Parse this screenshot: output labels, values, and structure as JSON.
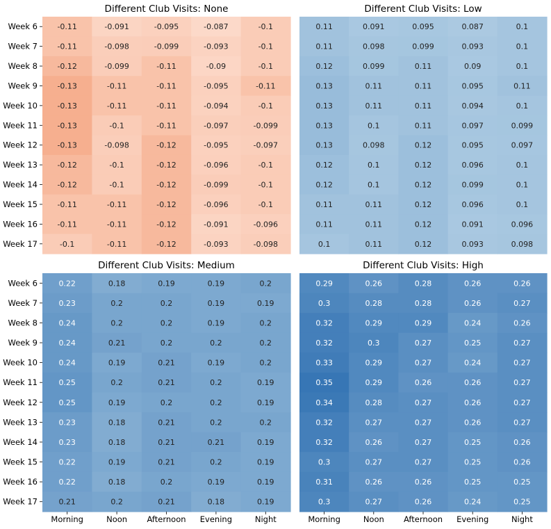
{
  "chart_data": [
    {
      "type": "heatmap",
      "title": "Different Club Visits: None",
      "xlabel": "",
      "ylabel": "",
      "categories": [
        "Morning",
        "Noon",
        "Afternoon",
        "Evening",
        "Night"
      ],
      "rows": [
        "Week 6",
        "Week 7",
        "Week 8",
        "Week 9",
        "Week 10",
        "Week 11",
        "Week 12",
        "Week 13",
        "Week 14",
        "Week 15",
        "Week 16",
        "Week 17"
      ],
      "values": [
        [
          "-0.11",
          "-0.091",
          "-0.095",
          "-0.087",
          "-0.1"
        ],
        [
          "-0.11",
          "-0.098",
          "-0.099",
          "-0.093",
          "-0.1"
        ],
        [
          "-0.12",
          "-0.099",
          "-0.11",
          "-0.09",
          "-0.1"
        ],
        [
          "-0.13",
          "-0.11",
          "-0.11",
          "-0.095",
          "-0.11"
        ],
        [
          "-0.13",
          "-0.11",
          "-0.11",
          "-0.094",
          "-0.1"
        ],
        [
          "-0.13",
          "-0.1",
          "-0.11",
          "-0.097",
          "-0.099"
        ],
        [
          "-0.13",
          "-0.098",
          "-0.12",
          "-0.095",
          "-0.097"
        ],
        [
          "-0.12",
          "-0.1",
          "-0.12",
          "-0.096",
          "-0.1"
        ],
        [
          "-0.12",
          "-0.1",
          "-0.12",
          "-0.099",
          "-0.1"
        ],
        [
          "-0.11",
          "-0.11",
          "-0.12",
          "-0.096",
          "-0.1"
        ],
        [
          "-0.11",
          "-0.11",
          "-0.12",
          "-0.091",
          "-0.096"
        ],
        [
          "-0.1",
          "-0.11",
          "-0.12",
          "-0.093",
          "-0.098"
        ]
      ]
    },
    {
      "type": "heatmap",
      "title": "Different Club Visits: Low",
      "xlabel": "",
      "ylabel": "",
      "categories": [
        "Morning",
        "Noon",
        "Afternoon",
        "Evening",
        "Night"
      ],
      "rows": [
        "Week 6",
        "Week 7",
        "Week 8",
        "Week 9",
        "Week 10",
        "Week 11",
        "Week 12",
        "Week 13",
        "Week 14",
        "Week 15",
        "Week 16",
        "Week 17"
      ],
      "values": [
        [
          "0.11",
          "0.091",
          "0.095",
          "0.087",
          "0.1"
        ],
        [
          "0.11",
          "0.098",
          "0.099",
          "0.093",
          "0.1"
        ],
        [
          "0.12",
          "0.099",
          "0.11",
          "0.09",
          "0.1"
        ],
        [
          "0.13",
          "0.11",
          "0.11",
          "0.095",
          "0.11"
        ],
        [
          "0.13",
          "0.11",
          "0.11",
          "0.094",
          "0.1"
        ],
        [
          "0.13",
          "0.1",
          "0.11",
          "0.097",
          "0.099"
        ],
        [
          "0.13",
          "0.098",
          "0.12",
          "0.095",
          "0.097"
        ],
        [
          "0.12",
          "0.1",
          "0.12",
          "0.096",
          "0.1"
        ],
        [
          "0.12",
          "0.1",
          "0.12",
          "0.099",
          "0.1"
        ],
        [
          "0.11",
          "0.11",
          "0.12",
          "0.096",
          "0.1"
        ],
        [
          "0.11",
          "0.11",
          "0.12",
          "0.091",
          "0.096"
        ],
        [
          "0.1",
          "0.11",
          "0.12",
          "0.093",
          "0.098"
        ]
      ]
    },
    {
      "type": "heatmap",
      "title": "Different Club Visits: Medium",
      "xlabel": "",
      "ylabel": "",
      "categories": [
        "Morning",
        "Noon",
        "Afternoon",
        "Evening",
        "Night"
      ],
      "rows": [
        "Week 6",
        "Week 7",
        "Week 8",
        "Week 9",
        "Week 10",
        "Week 11",
        "Week 12",
        "Week 13",
        "Week 14",
        "Week 15",
        "Week 16",
        "Week 17"
      ],
      "values": [
        [
          "0.22",
          "0.18",
          "0.19",
          "0.19",
          "0.2"
        ],
        [
          "0.23",
          "0.2",
          "0.2",
          "0.19",
          "0.19"
        ],
        [
          "0.24",
          "0.2",
          "0.2",
          "0.19",
          "0.2"
        ],
        [
          "0.24",
          "0.21",
          "0.2",
          "0.2",
          "0.2"
        ],
        [
          "0.24",
          "0.19",
          "0.21",
          "0.19",
          "0.2"
        ],
        [
          "0.25",
          "0.2",
          "0.21",
          "0.2",
          "0.19"
        ],
        [
          "0.25",
          "0.19",
          "0.2",
          "0.2",
          "0.19"
        ],
        [
          "0.23",
          "0.18",
          "0.21",
          "0.2",
          "0.2"
        ],
        [
          "0.23",
          "0.18",
          "0.21",
          "0.21",
          "0.19"
        ],
        [
          "0.22",
          "0.19",
          "0.21",
          "0.2",
          "0.19"
        ],
        [
          "0.22",
          "0.18",
          "0.2",
          "0.19",
          "0.19"
        ],
        [
          "0.21",
          "0.2",
          "0.21",
          "0.18",
          "0.19"
        ]
      ]
    },
    {
      "type": "heatmap",
      "title": "Different Club Visits: High",
      "xlabel": "",
      "ylabel": "",
      "categories": [
        "Morning",
        "Noon",
        "Afternoon",
        "Evening",
        "Night"
      ],
      "rows": [
        "Week 6",
        "Week 7",
        "Week 8",
        "Week 9",
        "Week 10",
        "Week 11",
        "Week 12",
        "Week 13",
        "Week 14",
        "Week 15",
        "Week 16",
        "Week 17"
      ],
      "values": [
        [
          "0.29",
          "0.26",
          "0.28",
          "0.26",
          "0.26"
        ],
        [
          "0.3",
          "0.28",
          "0.28",
          "0.26",
          "0.27"
        ],
        [
          "0.32",
          "0.29",
          "0.29",
          "0.24",
          "0.26"
        ],
        [
          "0.32",
          "0.3",
          "0.27",
          "0.25",
          "0.27"
        ],
        [
          "0.33",
          "0.29",
          "0.27",
          "0.24",
          "0.27"
        ],
        [
          "0.35",
          "0.29",
          "0.26",
          "0.26",
          "0.27"
        ],
        [
          "0.34",
          "0.28",
          "0.27",
          "0.26",
          "0.27"
        ],
        [
          "0.32",
          "0.27",
          "0.27",
          "0.26",
          "0.27"
        ],
        [
          "0.32",
          "0.26",
          "0.27",
          "0.25",
          "0.26"
        ],
        [
          "0.3",
          "0.27",
          "0.27",
          "0.25",
          "0.26"
        ],
        [
          "0.31",
          "0.26",
          "0.26",
          "0.25",
          "0.25"
        ],
        [
          "0.3",
          "0.27",
          "0.26",
          "0.24",
          "0.25"
        ]
      ]
    }
  ],
  "colors": {
    "negative_light": "#fde0d2",
    "negative_dark": "#f4a582",
    "positive_light": "#d1e5f0",
    "positive_dark": "#2166ac",
    "text_dark": "#222222",
    "text_light": "#ffffff"
  }
}
